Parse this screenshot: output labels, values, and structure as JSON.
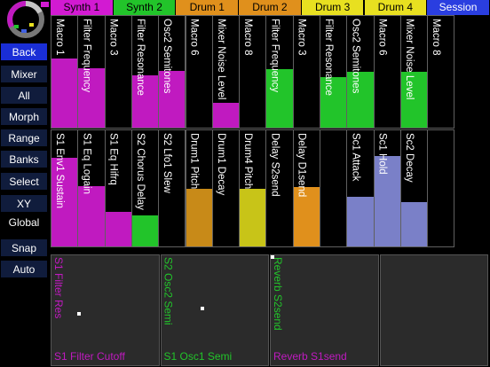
{
  "tabs": [
    {
      "label": "Synth 1",
      "color": "#d21ad2"
    },
    {
      "label": "Synth 2",
      "color": "#22c42a"
    },
    {
      "label": "Drum 1",
      "color": "#e0901c"
    },
    {
      "label": "Drum 2",
      "color": "#e0901c"
    },
    {
      "label": "Drum 3",
      "color": "#e8e020"
    },
    {
      "label": "Drum 4",
      "color": "#e8e020"
    },
    {
      "label": "Session",
      "color": "#2a3ee0"
    }
  ],
  "menu": {
    "back": "Back",
    "mixer": "Mixer",
    "all": "All",
    "morph": "Morph",
    "range": "Range",
    "banks": "Banks",
    "select": "Select",
    "xy_global": "XY Global",
    "snap": "Snap",
    "auto": "Auto"
  },
  "row1": [
    {
      "label": "Macro 1",
      "color": "#c01ac0",
      "level": 0.62
    },
    {
      "label": "Filter Frequency",
      "color": "#c01ac0",
      "level": 0.53
    },
    {
      "label": "Macro 3",
      "color": "#c01ac0",
      "level": 0.0
    },
    {
      "label": "Filter Resonance",
      "color": "#c01ac0",
      "level": 0.47
    },
    {
      "label": "Osc2 Semitones",
      "color": "#c01ac0",
      "level": 0.51
    },
    {
      "label": "Macro 6",
      "color": "#c01ac0",
      "level": 0.0
    },
    {
      "label": "Mixer Noise Level",
      "color": "#c01ac0",
      "level": 0.22
    },
    {
      "label": "Macro 8",
      "color": "#c01ac0",
      "level": 0.0
    },
    {
      "label": "Filter Frequency",
      "color": "#22c42a",
      "level": 0.52
    },
    {
      "label": "Macro 3",
      "color": "#22c42a",
      "level": 0.0
    },
    {
      "label": "Filter Resonance",
      "color": "#22c42a",
      "level": 0.45
    },
    {
      "label": "Osc2 Semitones",
      "color": "#22c42a",
      "level": 0.5
    },
    {
      "label": "Macro 6",
      "color": "#22c42a",
      "level": 0.0
    },
    {
      "label": "Mixer Noise Level",
      "color": "#22c42a",
      "level": 0.5
    },
    {
      "label": "Macro 8",
      "color": "#22c42a",
      "level": 0.0
    }
  ],
  "row2": [
    {
      "label": "S1 Env1 Sustain",
      "color": "#c01ac0",
      "level": 0.76
    },
    {
      "label": "S1 Eq Logain",
      "color": "#c01ac0",
      "level": 0.52
    },
    {
      "label": "S1 Eq Hifrq",
      "color": "#c01ac0",
      "level": 0.3
    },
    {
      "label": "S2 Chorus Delay",
      "color": "#22c42a",
      "level": 0.27
    },
    {
      "label": "S2 Lfo1 Slew",
      "color": "#22c42a",
      "level": 0.0
    },
    {
      "label": "Drum1 Pitch",
      "color": "#c88a18",
      "level": 0.5
    },
    {
      "label": "Drum1 Decay",
      "color": "#c88a18",
      "level": 0.0
    },
    {
      "label": "Drum4 Pitch",
      "color": "#c8c418",
      "level": 0.5
    },
    {
      "label": "Delay S2send",
      "color": "#c8c418",
      "level": 0.0
    },
    {
      "label": "Delay D1send",
      "color": "#e0901c",
      "level": 0.51
    },
    {
      "label": "",
      "color": "#7a80c8",
      "level": 0.0
    },
    {
      "label": "Sc1 Attack",
      "color": "#7a80c8",
      "level": 0.43
    },
    {
      "label": "Sc1 Hold",
      "color": "#7a80c8",
      "level": 0.78
    },
    {
      "label": "Sc2 Decay",
      "color": "#7a80c8",
      "level": 0.38
    },
    {
      "label": "",
      "color": "#7a80c8",
      "level": 0.0
    }
  ],
  "pads": [
    {
      "ylabel": "S1 Filter Res",
      "xlabel": "S1 Filter Cutoff",
      "color": "#c01ac0",
      "dot": [
        0.26,
        0.53
      ]
    },
    {
      "ylabel": "S2 Osc2 Semi",
      "xlabel": "S1 Osc1 Semi",
      "color": "#22c42a",
      "dot": [
        0.39,
        0.48
      ]
    },
    {
      "ylabel": "Reverb S2send",
      "xlabel": "Reverb S1send",
      "color": "#c01ac0",
      "ycolor": "#22c42a",
      "dot": [
        0.0,
        0.0
      ]
    },
    {
      "ylabel": "",
      "xlabel": "",
      "color": "#c01ac0",
      "dot": null
    }
  ]
}
